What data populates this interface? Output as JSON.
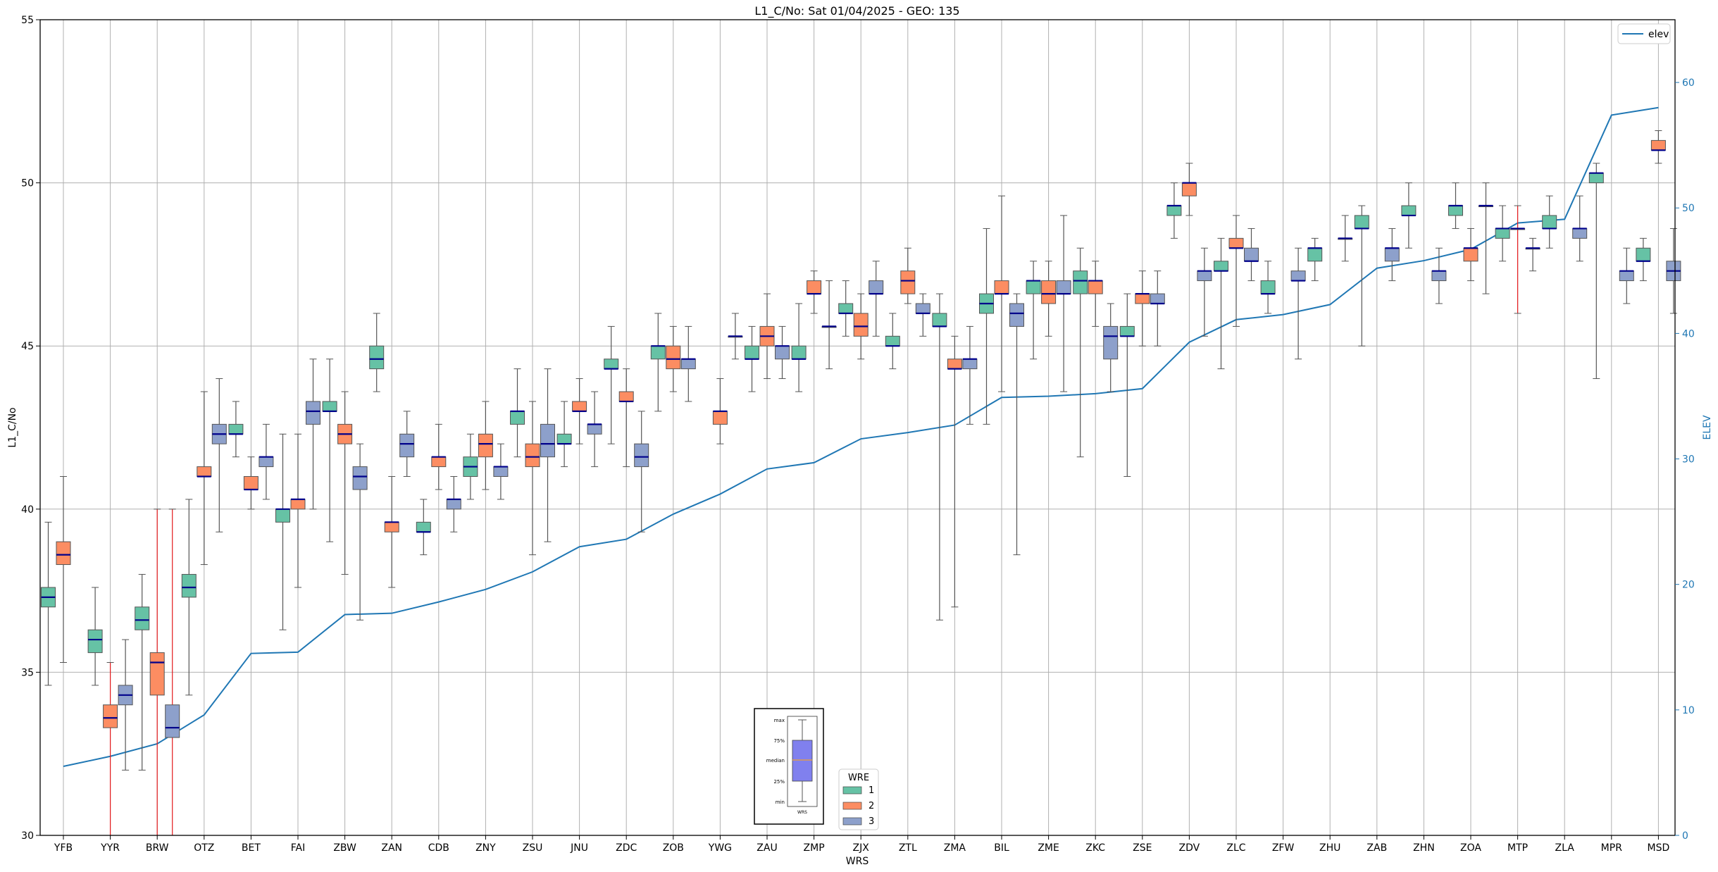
{
  "chart_data": {
    "type": "box",
    "title": "L1_C/No: Sat 01/04/2025 - GEO: 135",
    "xlabel": "WRS",
    "ylabel": "L1_C/No",
    "y2label": "ELEV",
    "ylim": [
      30,
      55
    ],
    "y2lim": [
      0,
      65
    ],
    "yticks": [
      "30",
      "35",
      "40",
      "45",
      "50",
      "55"
    ],
    "y2ticks": [
      "0",
      "10",
      "20",
      "30",
      "40",
      "50",
      "60"
    ],
    "grid": true,
    "categories": [
      "YFB",
      "YYR",
      "BRW",
      "OTZ",
      "BET",
      "FAI",
      "ZBW",
      "ZAN",
      "CDB",
      "ZNY",
      "ZSU",
      "JNU",
      "ZDC",
      "ZOB",
      "YWG",
      "ZAU",
      "ZMP",
      "ZJX",
      "ZTL",
      "ZMA",
      "BIL",
      "ZME",
      "ZKC",
      "ZSE",
      "ZDV",
      "ZLC",
      "ZFW",
      "ZHU",
      "ZAB",
      "ZHN",
      "ZOA",
      "MTP",
      "ZLA",
      "MPR",
      "MSD"
    ],
    "wre_colors": {
      "1": "#66c2a5",
      "2": "#fc8d62",
      "3": "#8da0cb"
    },
    "series": [
      {
        "name": "1",
        "boxes": [
          {
            "cat": 0,
            "min": 34.6,
            "q1": 37.0,
            "med": 37.3,
            "q3": 37.6,
            "max": 39.6
          },
          {
            "cat": 1,
            "min": 34.6,
            "q1": 35.6,
            "med": 36.0,
            "q3": 36.3,
            "max": 37.6
          },
          {
            "cat": 2,
            "min": 32.0,
            "q1": 36.3,
            "med": 36.6,
            "q3": 37.0,
            "max": 38.0
          },
          {
            "cat": 3,
            "min": 34.3,
            "q1": 37.3,
            "med": 37.6,
            "q3": 38.0,
            "max": 40.3
          },
          {
            "cat": 4,
            "min": 41.6,
            "q1": 42.3,
            "med": 42.3,
            "q3": 42.6,
            "max": 43.3
          },
          {
            "cat": 5,
            "min": 36.3,
            "q1": 39.6,
            "med": 40.0,
            "q3": 40.0,
            "max": 42.3
          },
          {
            "cat": 6,
            "min": 39.0,
            "q1": 43.0,
            "med": 43.0,
            "q3": 43.3,
            "max": 44.6
          },
          {
            "cat": 7,
            "min": 43.6,
            "q1": 44.3,
            "med": 44.6,
            "q3": 45.0,
            "max": 46.0
          },
          {
            "cat": 8,
            "min": 38.6,
            "q1": 39.3,
            "med": 39.3,
            "q3": 39.6,
            "max": 40.3
          },
          {
            "cat": 9,
            "min": 40.3,
            "q1": 41.0,
            "med": 41.3,
            "q3": 41.6,
            "max": 42.3
          },
          {
            "cat": 10,
            "min": 41.6,
            "q1": 42.6,
            "med": 43.0,
            "q3": 43.0,
            "max": 44.3
          },
          {
            "cat": 11,
            "min": 41.3,
            "q1": 42.0,
            "med": 42.0,
            "q3": 42.3,
            "max": 43.3
          },
          {
            "cat": 12,
            "min": 42.0,
            "q1": 44.3,
            "med": 44.3,
            "q3": 44.6,
            "max": 45.6
          },
          {
            "cat": 13,
            "min": 43.0,
            "q1": 44.6,
            "med": 45.0,
            "q3": 45.0,
            "max": 46.0
          },
          {
            "cat": 15,
            "min": 43.6,
            "q1": 44.6,
            "med": 44.6,
            "q3": 45.0,
            "max": 45.6
          },
          {
            "cat": 16,
            "min": 43.6,
            "q1": 44.6,
            "med": 44.6,
            "q3": 45.0,
            "max": 46.3
          },
          {
            "cat": 17,
            "min": 45.3,
            "q1": 46.0,
            "med": 46.0,
            "q3": 46.3,
            "max": 47.0
          },
          {
            "cat": 18,
            "min": 44.3,
            "q1": 45.0,
            "med": 45.0,
            "q3": 45.3,
            "max": 46.0
          },
          {
            "cat": 19,
            "min": 36.6,
            "q1": 45.6,
            "med": 45.6,
            "q3": 46.0,
            "max": 46.6
          },
          {
            "cat": 20,
            "min": 42.6,
            "q1": 46.0,
            "med": 46.3,
            "q3": 46.6,
            "max": 48.6
          },
          {
            "cat": 21,
            "min": 44.6,
            "q1": 46.6,
            "med": 47.0,
            "q3": 47.0,
            "max": 47.6
          },
          {
            "cat": 22,
            "min": 41.6,
            "q1": 46.6,
            "med": 47.0,
            "q3": 47.3,
            "max": 48.0
          },
          {
            "cat": 23,
            "min": 41.0,
            "q1": 45.3,
            "med": 45.3,
            "q3": 45.6,
            "max": 46.6
          },
          {
            "cat": 24,
            "min": 48.3,
            "q1": 49.0,
            "med": 49.3,
            "q3": 49.3,
            "max": 50.0
          },
          {
            "cat": 25,
            "min": 44.3,
            "q1": 47.3,
            "med": 47.3,
            "q3": 47.6,
            "max": 48.3
          },
          {
            "cat": 26,
            "min": 46.0,
            "q1": 46.6,
            "med": 46.6,
            "q3": 47.0,
            "max": 47.6
          },
          {
            "cat": 27,
            "min": 47.0,
            "q1": 47.6,
            "med": 48.0,
            "q3": 48.0,
            "max": 48.3
          },
          {
            "cat": 28,
            "min": 45.0,
            "q1": 48.6,
            "med": 48.6,
            "q3": 49.0,
            "max": 49.3
          },
          {
            "cat": 29,
            "min": 48.0,
            "q1": 49.0,
            "med": 49.0,
            "q3": 49.3,
            "max": 50.0
          },
          {
            "cat": 30,
            "min": 48.6,
            "q1": 49.0,
            "med": 49.3,
            "q3": 49.3,
            "max": 50.0
          },
          {
            "cat": 31,
            "min": 47.6,
            "q1": 48.3,
            "med": 48.6,
            "q3": 48.6,
            "max": 49.3
          },
          {
            "cat": 32,
            "min": 48.0,
            "q1": 48.6,
            "med": 48.6,
            "q3": 49.0,
            "max": 49.6
          },
          {
            "cat": 33,
            "min": 44.0,
            "q1": 50.0,
            "med": 50.3,
            "q3": 50.3,
            "max": 50.6
          },
          {
            "cat": 34,
            "min": 47.0,
            "q1": 47.6,
            "med": 47.6,
            "q3": 48.0,
            "max": 48.3
          }
        ]
      },
      {
        "name": "2",
        "boxes": [
          {
            "cat": 0,
            "min": 35.3,
            "q1": 38.3,
            "med": 38.6,
            "q3": 39.0,
            "max": 41.0
          },
          {
            "cat": 1,
            "min": 30.0,
            "q1": 33.3,
            "med": 33.6,
            "q3": 34.0,
            "max": 35.3
          },
          {
            "cat": 2,
            "min": 30.0,
            "q1": 34.3,
            "med": 35.3,
            "q3": 35.6,
            "max": 40.0
          },
          {
            "cat": 3,
            "min": 38.3,
            "q1": 41.0,
            "med": 41.0,
            "q3": 41.3,
            "max": 43.6
          },
          {
            "cat": 4,
            "min": 40.0,
            "q1": 40.6,
            "med": 40.6,
            "q3": 41.0,
            "max": 41.6
          },
          {
            "cat": 5,
            "min": 37.6,
            "q1": 40.0,
            "med": 40.3,
            "q3": 40.3,
            "max": 42.3
          },
          {
            "cat": 6,
            "min": 38.0,
            "q1": 42.0,
            "med": 42.3,
            "q3": 42.6,
            "max": 43.6
          },
          {
            "cat": 7,
            "min": 37.6,
            "q1": 39.3,
            "med": 39.6,
            "q3": 39.6,
            "max": 41.0
          },
          {
            "cat": 8,
            "min": 40.6,
            "q1": 41.3,
            "med": 41.6,
            "q3": 41.6,
            "max": 42.6
          },
          {
            "cat": 9,
            "min": 40.6,
            "q1": 41.6,
            "med": 42.0,
            "q3": 42.3,
            "max": 43.3
          },
          {
            "cat": 10,
            "min": 38.6,
            "q1": 41.3,
            "med": 41.6,
            "q3": 42.0,
            "max": 43.3
          },
          {
            "cat": 11,
            "min": 42.0,
            "q1": 43.0,
            "med": 43.0,
            "q3": 43.3,
            "max": 44.0
          },
          {
            "cat": 12,
            "min": 41.3,
            "q1": 43.3,
            "med": 43.3,
            "q3": 43.6,
            "max": 44.3
          },
          {
            "cat": 13,
            "min": 43.6,
            "q1": 44.3,
            "med": 44.6,
            "q3": 45.0,
            "max": 45.6
          },
          {
            "cat": 14,
            "min": 42.0,
            "q1": 42.6,
            "med": 43.0,
            "q3": 43.0,
            "max": 44.0
          },
          {
            "cat": 15,
            "min": 44.0,
            "q1": 45.0,
            "med": 45.3,
            "q3": 45.6,
            "max": 46.6
          },
          {
            "cat": 16,
            "min": 46.0,
            "q1": 46.6,
            "med": 46.6,
            "q3": 47.0,
            "max": 47.3
          },
          {
            "cat": 17,
            "min": 44.6,
            "q1": 45.3,
            "med": 45.6,
            "q3": 46.0,
            "max": 46.6
          },
          {
            "cat": 18,
            "min": 46.3,
            "q1": 46.6,
            "med": 47.0,
            "q3": 47.3,
            "max": 48.0
          },
          {
            "cat": 19,
            "min": 37.0,
            "q1": 44.3,
            "med": 44.3,
            "q3": 44.6,
            "max": 45.3
          },
          {
            "cat": 20,
            "min": 43.6,
            "q1": 46.6,
            "med": 46.6,
            "q3": 47.0,
            "max": 49.6
          },
          {
            "cat": 21,
            "min": 45.3,
            "q1": 46.3,
            "med": 46.6,
            "q3": 47.0,
            "max": 47.6
          },
          {
            "cat": 22,
            "min": 45.6,
            "q1": 46.6,
            "med": 47.0,
            "q3": 47.0,
            "max": 47.6
          },
          {
            "cat": 23,
            "min": 45.0,
            "q1": 46.3,
            "med": 46.6,
            "q3": 46.6,
            "max": 47.3
          },
          {
            "cat": 24,
            "min": 49.0,
            "q1": 49.6,
            "med": 50.0,
            "q3": 50.0,
            "max": 50.6
          },
          {
            "cat": 25,
            "min": 45.6,
            "q1": 48.0,
            "med": 48.0,
            "q3": 48.3,
            "max": 49.0
          },
          {
            "cat": 30,
            "min": 47.0,
            "q1": 47.6,
            "med": 48.0,
            "q3": 48.0,
            "max": 48.6
          },
          {
            "cat": 31,
            "min": 46.0,
            "q1": 48.6,
            "med": 48.6,
            "q3": 48.6,
            "max": 49.3
          },
          {
            "cat": 34,
            "min": 50.6,
            "q1": 51.0,
            "med": 51.0,
            "q3": 51.3,
            "max": 51.6
          }
        ]
      },
      {
        "name": "3",
        "boxes": [
          {
            "cat": 1,
            "min": 32.0,
            "q1": 34.0,
            "med": 34.3,
            "q3": 34.6,
            "max": 36.0
          },
          {
            "cat": 2,
            "min": 30.0,
            "q1": 33.0,
            "med": 33.3,
            "q3": 34.0,
            "max": 40.0
          },
          {
            "cat": 3,
            "min": 39.3,
            "q1": 42.0,
            "med": 42.3,
            "q3": 42.6,
            "max": 44.0
          },
          {
            "cat": 4,
            "min": 40.3,
            "q1": 41.3,
            "med": 41.6,
            "q3": 41.6,
            "max": 42.6
          },
          {
            "cat": 5,
            "min": 40.0,
            "q1": 42.6,
            "med": 43.0,
            "q3": 43.3,
            "max": 44.6
          },
          {
            "cat": 6,
            "min": 36.6,
            "q1": 40.6,
            "med": 41.0,
            "q3": 41.3,
            "max": 42.0
          },
          {
            "cat": 7,
            "min": 41.0,
            "q1": 41.6,
            "med": 42.0,
            "q3": 42.3,
            "max": 43.0
          },
          {
            "cat": 8,
            "min": 39.3,
            "q1": 40.0,
            "med": 40.3,
            "q3": 40.3,
            "max": 41.0
          },
          {
            "cat": 9,
            "min": 40.3,
            "q1": 41.0,
            "med": 41.3,
            "q3": 41.3,
            "max": 42.0
          },
          {
            "cat": 10,
            "min": 39.0,
            "q1": 41.6,
            "med": 42.0,
            "q3": 42.6,
            "max": 44.3
          },
          {
            "cat": 11,
            "min": 41.3,
            "q1": 42.3,
            "med": 42.6,
            "q3": 42.6,
            "max": 43.6
          },
          {
            "cat": 12,
            "min": 39.3,
            "q1": 41.3,
            "med": 41.6,
            "q3": 42.0,
            "max": 43.0
          },
          {
            "cat": 13,
            "min": 43.3,
            "q1": 44.3,
            "med": 44.6,
            "q3": 44.6,
            "max": 45.6
          },
          {
            "cat": 14,
            "min": 44.6,
            "q1": 45.3,
            "med": 45.3,
            "q3": 45.3,
            "max": 46.0
          },
          {
            "cat": 15,
            "min": 44.0,
            "q1": 44.6,
            "med": 45.0,
            "q3": 45.0,
            "max": 45.6
          },
          {
            "cat": 16,
            "min": 44.3,
            "q1": 45.6,
            "med": 45.6,
            "q3": 45.6,
            "max": 47.0
          },
          {
            "cat": 17,
            "min": 45.3,
            "q1": 46.6,
            "med": 46.6,
            "q3": 47.0,
            "max": 47.6
          },
          {
            "cat": 18,
            "min": 45.3,
            "q1": 46.0,
            "med": 46.0,
            "q3": 46.3,
            "max": 46.6
          },
          {
            "cat": 19,
            "min": 42.6,
            "q1": 44.3,
            "med": 44.6,
            "q3": 44.6,
            "max": 45.6
          },
          {
            "cat": 20,
            "min": 38.6,
            "q1": 45.6,
            "med": 46.0,
            "q3": 46.3,
            "max": 46.6
          },
          {
            "cat": 21,
            "min": 43.6,
            "q1": 46.6,
            "med": 46.6,
            "q3": 47.0,
            "max": 49.0
          },
          {
            "cat": 22,
            "min": 43.6,
            "q1": 44.6,
            "med": 45.3,
            "q3": 45.6,
            "max": 46.3
          },
          {
            "cat": 23,
            "min": 45.0,
            "q1": 46.3,
            "med": 46.3,
            "q3": 46.6,
            "max": 47.3
          },
          {
            "cat": 24,
            "min": 45.3,
            "q1": 47.0,
            "med": 47.3,
            "q3": 47.3,
            "max": 48.0
          },
          {
            "cat": 25,
            "min": 47.0,
            "q1": 47.6,
            "med": 47.6,
            "q3": 48.0,
            "max": 48.6
          },
          {
            "cat": 26,
            "min": 44.6,
            "q1": 47.0,
            "med": 47.0,
            "q3": 47.3,
            "max": 48.0
          },
          {
            "cat": 27,
            "min": 47.6,
            "q1": 48.3,
            "med": 48.3,
            "q3": 48.3,
            "max": 49.0
          },
          {
            "cat": 28,
            "min": 47.0,
            "q1": 47.6,
            "med": 48.0,
            "q3": 48.0,
            "max": 48.6
          },
          {
            "cat": 29,
            "min": 46.3,
            "q1": 47.0,
            "med": 47.3,
            "q3": 47.3,
            "max": 48.0
          },
          {
            "cat": 30,
            "min": 46.6,
            "q1": 49.3,
            "med": 49.3,
            "q3": 49.3,
            "max": 50.0
          },
          {
            "cat": 31,
            "min": 47.3,
            "q1": 48.0,
            "med": 48.0,
            "q3": 48.0,
            "max": 48.3
          },
          {
            "cat": 32,
            "min": 47.6,
            "q1": 48.3,
            "med": 48.6,
            "q3": 48.6,
            "max": 49.6
          },
          {
            "cat": 33,
            "min": 46.3,
            "q1": 47.0,
            "med": 47.3,
            "q3": 47.3,
            "max": 48.0
          },
          {
            "cat": 34,
            "min": 46.0,
            "q1": 47.0,
            "med": 47.3,
            "q3": 47.6,
            "max": 48.6
          }
        ]
      }
    ],
    "red_whiskers": [
      1,
      2,
      31
    ],
    "elev_line": {
      "name": "elev",
      "color": "#1f77b4",
      "values": [
        5.5,
        6.3,
        7.3,
        9.6,
        14.5,
        14.6,
        17.6,
        17.7,
        18.6,
        19.6,
        21.0,
        23.0,
        23.6,
        25.6,
        27.2,
        29.2,
        29.7,
        31.6,
        32.1,
        32.7,
        34.9,
        35.0,
        35.2,
        35.6,
        39.3,
        41.1,
        41.5,
        42.3,
        45.2,
        45.8,
        46.7,
        48.8,
        49.1,
        57.4,
        58.0
      ]
    },
    "legend_elev": {
      "label": "elev",
      "position": "top-right"
    },
    "legend_wre": {
      "title": "WRE",
      "labels": [
        "1",
        "2",
        "3"
      ],
      "position": "bottom-center"
    },
    "key_box": {
      "labels": [
        "max",
        "75%",
        "median",
        "25%",
        "min"
      ],
      "xlabel": "WRS",
      "color": "#8080ee"
    }
  }
}
